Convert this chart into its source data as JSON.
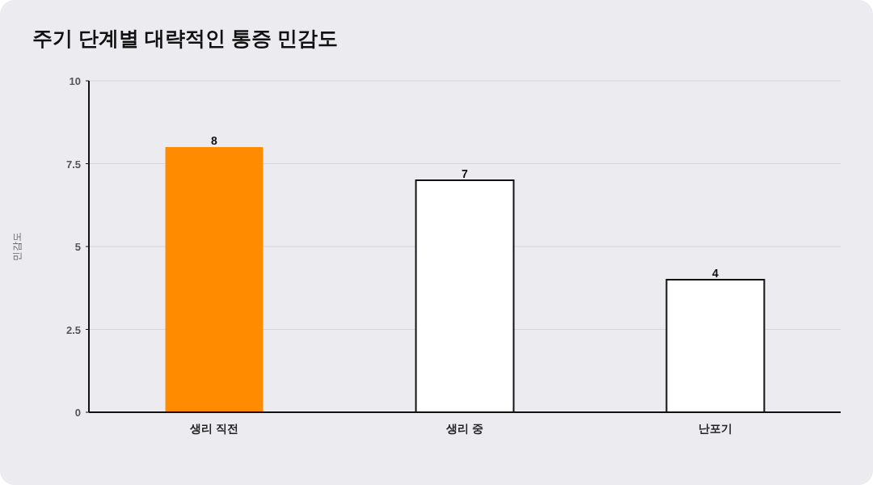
{
  "chart_data": {
    "type": "bar",
    "title": "주기 단계별 대략적인 통증 민감도",
    "ylabel": "민감도",
    "categories": [
      "생리 직전",
      "생리 중",
      "난포기"
    ],
    "values": [
      8,
      7,
      4
    ],
    "colors": [
      "#ff8c00",
      "#ffffff",
      "#ffffff"
    ],
    "ylim": [
      0,
      10
    ],
    "yticks": [
      0,
      {
        "value": 2.5,
        "label": "2.5"
      },
      5,
      {
        "value": 7.5,
        "label": "7.5"
      },
      10
    ],
    "grid": "y",
    "data_labels": true
  }
}
